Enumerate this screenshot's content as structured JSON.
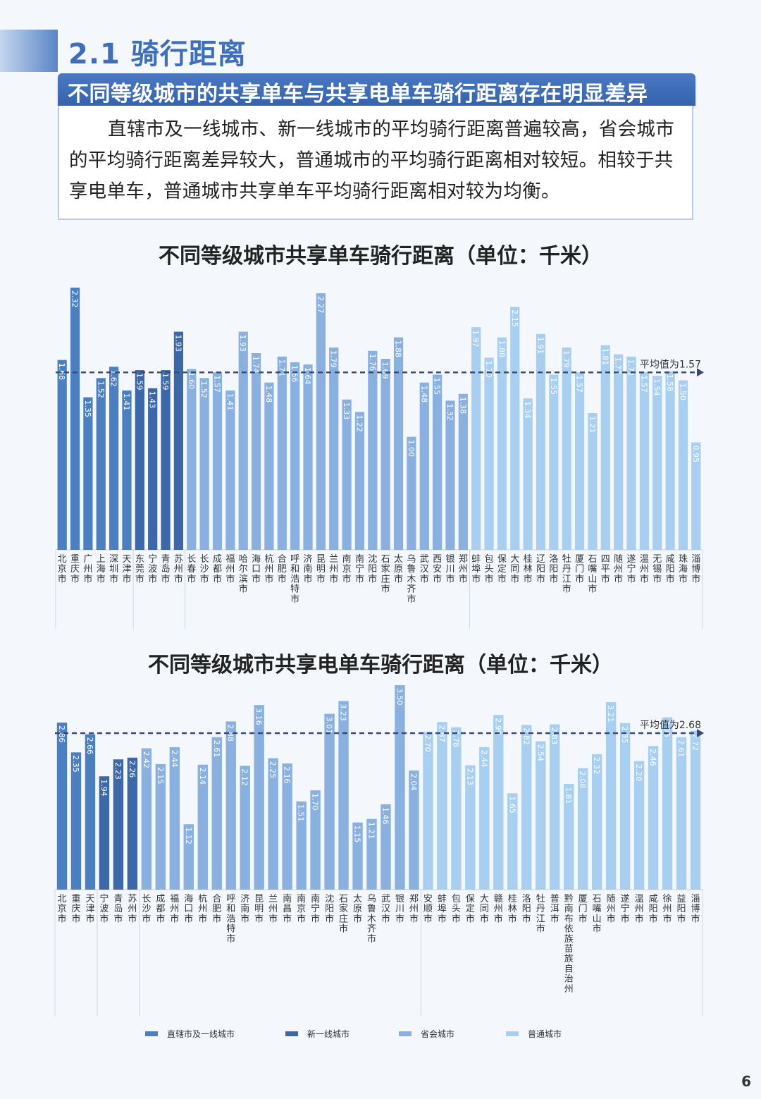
{
  "section": {
    "title": "2.1 骑行距离",
    "banner": "不同等级城市的共享单车与共享电单车骑行距离存在明显差异",
    "paragraph": "直辖市及一线城市、新一线城市的平均骑行距离普遍较高，省会城市的平均骑行距离差异较大，普通城市的平均骑行距离相对较短。相较于共享电单车，普通城市共享单车平均骑行距离相对较为均衡。"
  },
  "legend": {
    "items": [
      {
        "label": "直辖市及一线城市",
        "color": "#4b7fc0"
      },
      {
        "label": "新一线城市",
        "color": "#3d68a8"
      },
      {
        "label": "省会城市",
        "color": "#89b0de"
      },
      {
        "label": "普通城市",
        "color": "#a8cff0"
      }
    ]
  },
  "page_number": "6",
  "colors": {
    "tier1": "#4b7fc0",
    "tier2": "#3d68a8",
    "tier3": "#89b0de",
    "tier4": "#a8cff0",
    "avg_line": "#3a4a78"
  },
  "chart_data": [
    {
      "type": "bar",
      "title": "不同等级城市共享单车骑行距离（单位：千米）",
      "average_label": "平均值为1.57",
      "average": 1.57,
      "ylim": [
        0,
        2.32
      ],
      "categories": [
        "北京市",
        "重庆市",
        "广州市",
        "上海市",
        "深圳市",
        "天津市",
        "东莞市",
        "宁波市",
        "青岛市",
        "苏州市",
        "长春市",
        "长沙市",
        "成都市",
        "福州市",
        "哈尔滨市",
        "海口市",
        "杭州市",
        "合肥市",
        "呼和浩特市",
        "济南市",
        "昆明市",
        "兰州市",
        "南京市",
        "南宁市",
        "沈阳市",
        "石家庄市",
        "太原市",
        "乌鲁木齐市",
        "武汉市",
        "西安市",
        "银川市",
        "郑州市",
        "蚌埠市",
        "包头市",
        "保定市",
        "大同市",
        "桂林市",
        "辽阳市",
        "洛阳市",
        "牡丹江市",
        "厦门市",
        "石嘴山市",
        "四平市",
        "随州市",
        "遂宁市",
        "温州市",
        "无锡市",
        "咸阳市",
        "珠海市",
        "淄博市"
      ],
      "values": [
        1.68,
        2.32,
        1.35,
        1.52,
        1.62,
        1.41,
        1.59,
        1.43,
        1.59,
        1.93,
        1.6,
        1.52,
        1.57,
        1.41,
        1.93,
        1.74,
        1.48,
        1.71,
        1.66,
        1.64,
        2.27,
        1.79,
        1.33,
        1.22,
        1.76,
        1.69,
        1.88,
        1.0,
        1.48,
        1.55,
        1.32,
        1.38,
        1.97,
        1.7,
        1.88,
        2.15,
        1.34,
        1.91,
        1.55,
        1.79,
        1.57,
        1.21,
        1.81,
        1.73,
        1.71,
        1.57,
        1.54,
        1.58,
        1.5,
        0.95
      ],
      "labels": [
        "1.68",
        "2.32",
        "1.35",
        "1.52",
        "1.62",
        "1.41",
        "1.59",
        "1.43",
        "1.59",
        "1.93",
        "1.60",
        "1.52",
        "1.57",
        "1.41",
        "1.93",
        "1.74",
        "1.48",
        "1.71",
        "1.66",
        "1.64",
        "2.27",
        "1.79",
        "1.33",
        "1.22",
        "1.76",
        "1.69",
        "1.88",
        "1.00",
        "1.48",
        "1.55",
        "1.32",
        "1.38",
        "1.97",
        "1.70",
        "1.88",
        "2.15",
        "1.34",
        "1.91",
        "1.55",
        "1.79",
        "1.57",
        "1.21",
        "1.81",
        "1.73",
        "1.71",
        "1.57",
        "1.54",
        "1.58",
        "1.50",
        "0.95"
      ],
      "tiers": [
        0,
        0,
        0,
        0,
        0,
        0,
        1,
        1,
        1,
        1,
        2,
        2,
        2,
        2,
        2,
        2,
        2,
        2,
        2,
        2,
        2,
        2,
        2,
        2,
        2,
        2,
        2,
        2,
        2,
        2,
        2,
        2,
        3,
        3,
        3,
        3,
        3,
        3,
        3,
        3,
        3,
        3,
        3,
        3,
        3,
        3,
        3,
        3,
        3,
        3
      ]
    },
    {
      "type": "bar",
      "title": "不同等级城市共享电单车骑行距离（单位：千米）",
      "average_label": "平均值为2.68",
      "average": 2.68,
      "ylim": [
        0,
        3.5
      ],
      "categories": [
        "北京市",
        "重庆市",
        "天津市",
        "宁波市",
        "青岛市",
        "苏州市",
        "长沙市",
        "成都市",
        "福州市",
        "海口市",
        "杭州市",
        "合肥市",
        "呼和浩特市",
        "济南市",
        "昆明市",
        "兰州市",
        "南昌市",
        "南京市",
        "南宁市",
        "沈阳市",
        "石家庄市",
        "太原市",
        "乌鲁木齐市",
        "武汉市",
        "银川市",
        "郑州市",
        "安顺市",
        "蚌埠市",
        "包头市",
        "保定市",
        "大同市",
        "赣州市",
        "桂林市",
        "洛阳市",
        "牡丹江市",
        "普洱市",
        "黔南布依族苗族自治州",
        "厦门市",
        "石嘴山市",
        "随州市",
        "遂宁市",
        "温州市",
        "咸阳市",
        "徐州市",
        "益阳市",
        "淄博市"
      ],
      "values": [
        2.86,
        2.35,
        2.66,
        1.94,
        2.23,
        2.26,
        2.42,
        2.15,
        2.44,
        1.12,
        2.14,
        2.61,
        2.88,
        2.12,
        3.16,
        2.25,
        2.16,
        1.51,
        1.7,
        3.01,
        3.23,
        1.15,
        1.21,
        1.46,
        3.5,
        2.04,
        2.7,
        2.87,
        2.78,
        2.13,
        2.44,
        2.99,
        1.65,
        2.82,
        2.54,
        2.83,
        1.81,
        2.08,
        2.32,
        3.21,
        2.85,
        2.2,
        2.46,
        2.95,
        2.61,
        2.72
      ],
      "labels": [
        "2.86",
        "2.35",
        "2.66",
        "1.94",
        "2.23",
        "2.26",
        "2.42",
        "2.15",
        "2.44",
        "1.12",
        "2.14",
        "2.61",
        "2.88",
        "2.12",
        "3.16",
        "2.25",
        "2.16",
        "1.51",
        "1.70",
        "3.01",
        "3.23",
        "1.15",
        "1.21",
        "1.46",
        "3.50",
        "2.04",
        "2.70",
        "2.87",
        "2.78",
        "2.13",
        "2.44",
        "2.99",
        "1.65",
        "2.82",
        "2.54",
        "2.83",
        "1.81",
        "2.08",
        "2.32",
        "3.21",
        "2.85",
        "2.20",
        "2.46",
        "2.95",
        "2.61",
        "2.72"
      ],
      "tiers": [
        0,
        0,
        0,
        1,
        1,
        1,
        2,
        2,
        2,
        2,
        2,
        2,
        2,
        2,
        2,
        2,
        2,
        2,
        2,
        2,
        2,
        2,
        2,
        2,
        2,
        2,
        3,
        3,
        3,
        3,
        3,
        3,
        3,
        3,
        3,
        3,
        3,
        3,
        3,
        3,
        3,
        3,
        3,
        3,
        3,
        3
      ]
    }
  ]
}
